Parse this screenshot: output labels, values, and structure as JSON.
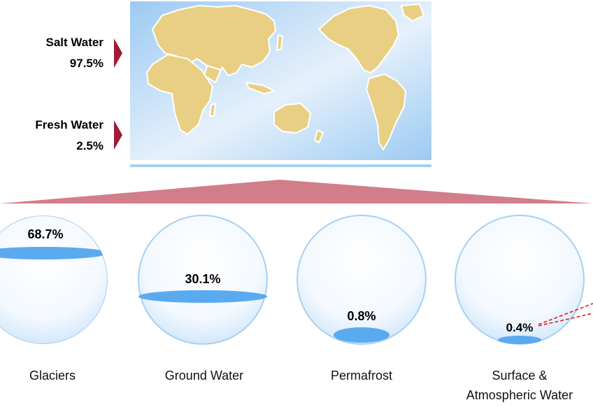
{
  "top_items": [
    {
      "label": "Salt Water",
      "value": "97.5%"
    },
    {
      "label": "Fresh Water",
      "value": "2.5%"
    }
  ],
  "categories": [
    {
      "label": "Glaciers",
      "label_line2": "",
      "value": "68.7%",
      "fraction": 0.687
    },
    {
      "label": "Ground Water",
      "label_line2": "",
      "value": "30.1%",
      "fraction": 0.301
    },
    {
      "label": "Permafrost",
      "label_line2": "",
      "value": "0.8%",
      "fraction": 0.008
    },
    {
      "label": "Surface &",
      "label_line2": "Atmospheric Water",
      "value": "0.4%",
      "fraction": 0.004
    }
  ],
  "colors": {
    "marker": "#a01c34",
    "fan": "#d27d8a",
    "water": "#5aaaf0",
    "globe_stroke": "#a8d0f0",
    "land": "#e8cf84",
    "map_ocean": "#a6cff2",
    "callout": "#e02020"
  }
}
